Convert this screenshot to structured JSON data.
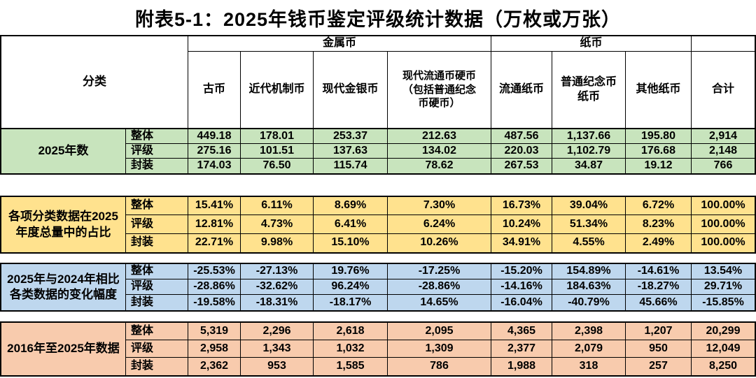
{
  "chart_data": {
    "type": "table",
    "title": "附表5-1：2025年钱币鉴定评级统计数据（万枚或万张）",
    "unit": "万枚或万张",
    "classify_label": "分类",
    "column_groups": [
      {
        "label": "金属币",
        "span": 4
      },
      {
        "label": "纸币",
        "span": 3
      }
    ],
    "columns": [
      "古币",
      "近代机制币",
      "现代金银币",
      "现代流通币硬币\n（包括普通纪念\n币硬币）",
      "流通纸币",
      "普通纪念币\n纸币",
      "其他纸币"
    ],
    "total_column": "合计",
    "row_groups": [
      {
        "label": "2025年数",
        "fill": "#c8e4bd",
        "rows": [
          {
            "label": "整体",
            "values": [
              "449.18",
              "178.01",
              "253.37",
              "212.63",
              "487.56",
              "1,137.66",
              "195.80",
              "2,914"
            ]
          },
          {
            "label": "评级",
            "values": [
              "275.16",
              "101.51",
              "137.63",
              "134.02",
              "220.03",
              "1,102.79",
              "176.68",
              "2,148"
            ]
          },
          {
            "label": "封装",
            "values": [
              "174.03",
              "76.50",
              "115.74",
              "78.62",
              "267.53",
              "34.87",
              "19.12",
              "766"
            ]
          }
        ]
      },
      {
        "label": "各项分类数据在2025\n年度总量中的占比",
        "fill": "#ffe28e",
        "rows": [
          {
            "label": "整体",
            "values": [
              "15.41%",
              "6.11%",
              "8.69%",
              "7.30%",
              "16.73%",
              "39.04%",
              "6.72%",
              "100.00%"
            ]
          },
          {
            "label": "评级",
            "values": [
              "12.81%",
              "4.73%",
              "6.41%",
              "6.24%",
              "10.24%",
              "51.34%",
              "8.23%",
              "100.00%"
            ]
          },
          {
            "label": "封装",
            "values": [
              "22.71%",
              "9.98%",
              "15.10%",
              "10.26%",
              "34.91%",
              "4.55%",
              "2.49%",
              "100.00%"
            ]
          }
        ]
      },
      {
        "label": "2025年与2024年相比\n各类数据的变化幅度",
        "fill": "#bed7ee",
        "rows": [
          {
            "label": "整体",
            "values": [
              "-25.53%",
              "-27.13%",
              "19.76%",
              "-17.25%",
              "-15.20%",
              "154.89%",
              "-14.61%",
              "13.54%"
            ]
          },
          {
            "label": "评级",
            "values": [
              "-28.86%",
              "-32.62%",
              "96.24%",
              "-28.86%",
              "-14.16%",
              "184.63%",
              "-18.27%",
              "29.71%"
            ]
          },
          {
            "label": "封装",
            "values": [
              "-19.58%",
              "-18.31%",
              "-18.17%",
              "14.65%",
              "-16.04%",
              "-40.79%",
              "45.66%",
              "-15.85%"
            ]
          }
        ]
      },
      {
        "label": "2016年至2025年数据",
        "fill": "#f8cbad",
        "rows": [
          {
            "label": "整体",
            "values": [
              "5,319",
              "2,296",
              "2,618",
              "2,095",
              "4,365",
              "2,398",
              "1,207",
              "20,299"
            ]
          },
          {
            "label": "评级",
            "values": [
              "2,958",
              "1,343",
              "1,032",
              "1,309",
              "2,377",
              "2,079",
              "950",
              "12,049"
            ]
          },
          {
            "label": "封装",
            "values": [
              "2,362",
              "953",
              "1,585",
              "786",
              "1,988",
              "318",
              "257",
              "8,250"
            ]
          }
        ]
      }
    ]
  }
}
